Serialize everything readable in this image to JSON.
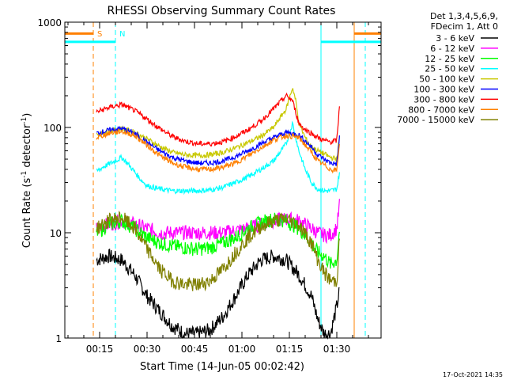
{
  "chart_data": {
    "type": "line",
    "title": "RHESSI Observing Summary Count Rates",
    "xlabel": "Start Time (14-Jun-05 00:02:42)",
    "ylabel_main": "Count Rate (s",
    "ylabel_sup": "-1",
    "ylabel_rest": " detector",
    "ylabel_sup2": "-1",
    "ylabel_end": ")",
    "yscale": "log",
    "ylim": [
      1,
      1000
    ],
    "xlim_min": [
      4,
      104
    ],
    "x_ticks": [
      {
        "min": 15,
        "label": "00:15"
      },
      {
        "min": 30,
        "label": "00:30"
      },
      {
        "min": 45,
        "label": "00:45"
      },
      {
        "min": 60,
        "label": "01:00"
      },
      {
        "min": 75,
        "label": "01:15"
      },
      {
        "min": 90,
        "label": "01:30"
      }
    ],
    "y_ticks": [
      {
        "value": 1,
        "label": "1"
      },
      {
        "value": 10,
        "label": "10"
      },
      {
        "value": 100,
        "label": "100"
      },
      {
        "value": 1000,
        "label": "1000"
      }
    ],
    "legend_header": [
      "Det 1,3,4,5,6,9,",
      "FDecim 1, Att 0"
    ],
    "series": [
      {
        "name": "3 - 6 keV",
        "color": "#000000",
        "x": [
          14,
          18,
          22,
          26,
          30,
          34,
          38,
          42,
          46,
          50,
          54,
          58,
          62,
          66,
          70,
          74,
          78,
          82,
          84,
          86,
          88,
          90,
          91
        ],
        "y": [
          5.5,
          6,
          5.5,
          4,
          2.5,
          1.8,
          1.3,
          1.1,
          1.1,
          1.2,
          1.6,
          2.5,
          4,
          5.5,
          6,
          5.5,
          4,
          2.5,
          1.5,
          1.1,
          1.1,
          2,
          3
        ]
      },
      {
        "name": "6 - 12 keV",
        "color": "#ff00ff",
        "x": [
          14,
          18,
          22,
          26,
          30,
          34,
          38,
          42,
          46,
          50,
          54,
          58,
          62,
          66,
          70,
          74,
          78,
          82,
          84,
          86,
          88,
          90,
          91
        ],
        "y": [
          11,
          12,
          13,
          12,
          11,
          10,
          10,
          10,
          10,
          10,
          10,
          10.5,
          11,
          12,
          13,
          13.5,
          13,
          11,
          10,
          9.5,
          9.5,
          11,
          20
        ]
      },
      {
        "name": "12 - 25 keV",
        "color": "#00ff00",
        "x": [
          14,
          18,
          22,
          26,
          30,
          34,
          38,
          42,
          46,
          50,
          54,
          58,
          62,
          66,
          70,
          74,
          78,
          82,
          84,
          86,
          88,
          90,
          91
        ],
        "y": [
          10,
          12,
          13,
          11,
          9,
          8,
          7.5,
          7.2,
          7,
          7.2,
          8,
          9,
          11,
          12.5,
          13.5,
          13,
          11,
          8,
          6.5,
          6,
          5,
          5.5,
          12
        ]
      },
      {
        "name": "25 - 50 keV",
        "color": "#00ffff",
        "x": [
          14,
          16,
          18,
          20,
          22,
          24,
          26,
          28,
          30,
          34,
          38,
          42,
          46,
          50,
          54,
          58,
          62,
          66,
          70,
          74,
          76,
          78,
          80,
          82,
          84,
          86,
          88,
          90,
          91
        ],
        "y": [
          38,
          42,
          45,
          48,
          52,
          45,
          38,
          32,
          28,
          26,
          25,
          25,
          25,
          25.5,
          27,
          30,
          34,
          40,
          48,
          70,
          110,
          60,
          40,
          30,
          26,
          25,
          25,
          26,
          40
        ]
      },
      {
        "name": "50 - 100 keV",
        "color": "#c8c800",
        "x": [
          14,
          18,
          22,
          26,
          30,
          34,
          38,
          42,
          46,
          50,
          54,
          58,
          62,
          66,
          70,
          74,
          76,
          77,
          78,
          80,
          82,
          84,
          86,
          88,
          90,
          91
        ],
        "y": [
          85,
          92,
          98,
          90,
          78,
          66,
          58,
          55,
          54,
          55,
          58,
          64,
          72,
          82,
          100,
          150,
          240,
          180,
          110,
          80,
          65,
          60,
          56,
          52,
          50,
          90
        ]
      },
      {
        "name": "100 - 300 keV",
        "color": "#0000ff",
        "x": [
          14,
          18,
          22,
          26,
          30,
          34,
          38,
          42,
          46,
          50,
          54,
          58,
          62,
          66,
          70,
          74,
          78,
          82,
          84,
          86,
          88,
          90,
          91
        ],
        "y": [
          88,
          94,
          98,
          88,
          72,
          60,
          52,
          48,
          46,
          46,
          48,
          53,
          60,
          70,
          80,
          90,
          85,
          65,
          55,
          50,
          46,
          45,
          90
        ]
      },
      {
        "name": "300 - 800 keV",
        "color": "#ff0000",
        "x": [
          14,
          18,
          22,
          26,
          30,
          34,
          38,
          42,
          46,
          50,
          54,
          58,
          62,
          66,
          70,
          74,
          76,
          78,
          80,
          82,
          84,
          86,
          88,
          90,
          91
        ],
        "y": [
          140,
          155,
          165,
          145,
          120,
          98,
          82,
          74,
          70,
          70,
          73,
          82,
          95,
          115,
          150,
          200,
          180,
          110,
          95,
          88,
          80,
          75,
          73,
          75,
          180
        ]
      },
      {
        "name": "800 - 7000 keV",
        "color": "#ff8000",
        "x": [
          14,
          18,
          22,
          26,
          30,
          34,
          38,
          42,
          46,
          50,
          54,
          58,
          62,
          66,
          70,
          74,
          78,
          82,
          84,
          86,
          88,
          90,
          91
        ],
        "y": [
          80,
          88,
          92,
          84,
          68,
          54,
          46,
          42,
          40,
          40,
          42,
          46,
          54,
          64,
          76,
          84,
          80,
          58,
          48,
          44,
          40,
          39,
          80
        ]
      },
      {
        "name": "7000 - 15000 keV",
        "color": "#808000",
        "x": [
          14,
          18,
          22,
          26,
          30,
          34,
          38,
          42,
          46,
          50,
          54,
          58,
          62,
          66,
          70,
          74,
          78,
          82,
          84,
          86,
          88,
          90,
          91
        ],
        "y": [
          11,
          13,
          14,
          11,
          7,
          4.5,
          3.5,
          3.2,
          3.2,
          3.5,
          4.5,
          6.5,
          9,
          11.5,
          13,
          13.5,
          12,
          8,
          5.5,
          4.2,
          3.5,
          3.5,
          10
        ]
      }
    ],
    "markers": [
      {
        "label": "S",
        "color": "#ff8000",
        "min": 13,
        "style": "dashed"
      },
      {
        "label": "N",
        "color": "#00ffff",
        "min": 20,
        "style": "dashed"
      },
      {
        "label": "",
        "color": "#00ffff",
        "min": 85,
        "style": "solid"
      },
      {
        "label": "",
        "color": "#ff8000",
        "min": 95.5,
        "style": "solid"
      },
      {
        "label": "",
        "color": "#00ffff",
        "min": 99,
        "style": "dashed"
      }
    ],
    "bars": [
      {
        "color": "#ff8000",
        "level": 780,
        "from_min": 4,
        "to_min": 13
      },
      {
        "color": "#00ffff",
        "level": 650,
        "from_min": 4,
        "to_min": 20
      },
      {
        "color": "#ff8000",
        "level": 780,
        "from_min": 95.5,
        "to_min": 104
      },
      {
        "color": "#00ffff",
        "level": 650,
        "from_min": 85,
        "to_min": 104
      }
    ],
    "footer_date": "17-Oct-2021 14:35"
  }
}
